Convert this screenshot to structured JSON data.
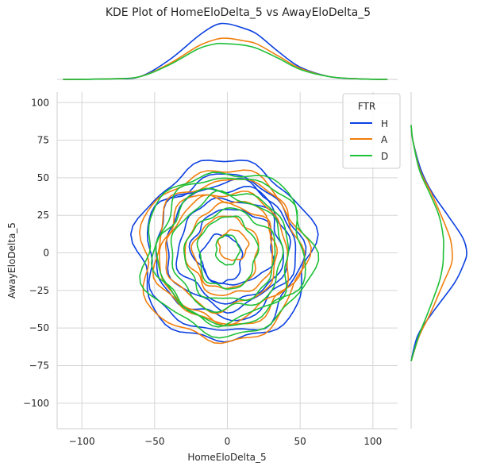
{
  "chart_data": {
    "type": "kde-joint",
    "title": "KDE Plot of HomeEloDelta_5 vs AwayEloDelta_5",
    "xlabel": "HomeEloDelta_5",
    "ylabel": "AwayEloDelta_5",
    "xlim": [
      -117,
      117
    ],
    "ylim": [
      -117,
      107
    ],
    "xticks": [
      -100,
      -50,
      0,
      50,
      100
    ],
    "xtick_labels": [
      "−100",
      "−50",
      "0",
      "50",
      "100"
    ],
    "yticks": [
      -100,
      -75,
      -50,
      -25,
      0,
      25,
      50,
      75,
      100
    ],
    "ytick_labels": [
      "−100",
      "−75",
      "−50",
      "−25",
      "0",
      "25",
      "50",
      "75",
      "100"
    ],
    "grid": true,
    "legend": {
      "title": "FTR",
      "placement": "top-right",
      "entries": [
        "H",
        "A",
        "D"
      ]
    },
    "series": [
      {
        "name": "H",
        "color": "#0b40e0",
        "contours": [
          {
            "rx": 60,
            "ry": 60,
            "cx": -2,
            "cy": 1
          },
          {
            "rx": 53,
            "ry": 52,
            "cx": -3,
            "cy": -1
          },
          {
            "rx": 48,
            "ry": 45,
            "cx": -2,
            "cy": 2
          },
          {
            "rx": 42,
            "ry": 40,
            "cx": 0,
            "cy": 4
          },
          {
            "rx": 36,
            "ry": 34,
            "cx": 2,
            "cy": 2
          },
          {
            "rx": 28,
            "ry": 25,
            "cx": 4,
            "cy": 4
          },
          {
            "rx": 14,
            "ry": 16,
            "cx": -4,
            "cy": -4
          }
        ],
        "marginal_x": [
          [
            -113,
            0
          ],
          [
            -80,
            0.01
          ],
          [
            -60,
            0.05
          ],
          [
            -40,
            0.35
          ],
          [
            -20,
            0.78
          ],
          [
            -8,
            0.98
          ],
          [
            0,
            1.0
          ],
          [
            10,
            0.93
          ],
          [
            20,
            0.82
          ],
          [
            35,
            0.5
          ],
          [
            50,
            0.22
          ],
          [
            70,
            0.05
          ],
          [
            90,
            0.01
          ],
          [
            110,
            0
          ]
        ],
        "marginal_y": [
          [
            -72,
            0
          ],
          [
            -55,
            0.12
          ],
          [
            -40,
            0.38
          ],
          [
            -20,
            0.78
          ],
          [
            -8,
            0.94
          ],
          [
            0,
            1.0
          ],
          [
            10,
            0.93
          ],
          [
            25,
            0.66
          ],
          [
            40,
            0.38
          ],
          [
            55,
            0.18
          ],
          [
            75,
            0.03
          ],
          [
            85,
            0
          ]
        ]
      },
      {
        "name": "A",
        "color": "#f07f0e",
        "contours": [
          {
            "rx": 56,
            "ry": 57,
            "cx": -4,
            "cy": -2
          },
          {
            "rx": 50,
            "ry": 48,
            "cx": 0,
            "cy": 1
          },
          {
            "rx": 44,
            "ry": 43,
            "cx": -2,
            "cy": -2
          },
          {
            "rx": 38,
            "ry": 37,
            "cx": -4,
            "cy": 0
          },
          {
            "rx": 30,
            "ry": 30,
            "cx": 2,
            "cy": 2
          },
          {
            "rx": 22,
            "ry": 24,
            "cx": -1,
            "cy": 0
          },
          {
            "rx": 10,
            "ry": 10,
            "cx": 4,
            "cy": 5
          }
        ],
        "marginal_x": [
          [
            -113,
            0
          ],
          [
            -80,
            0.01
          ],
          [
            -60,
            0.05
          ],
          [
            -40,
            0.28
          ],
          [
            -20,
            0.6
          ],
          [
            -8,
            0.72
          ],
          [
            0,
            0.74
          ],
          [
            10,
            0.7
          ],
          [
            20,
            0.64
          ],
          [
            35,
            0.42
          ],
          [
            50,
            0.2
          ],
          [
            70,
            0.05
          ],
          [
            90,
            0.01
          ],
          [
            110,
            0
          ]
        ],
        "marginal_y": [
          [
            -72,
            0
          ],
          [
            -55,
            0.15
          ],
          [
            -40,
            0.35
          ],
          [
            -20,
            0.58
          ],
          [
            -8,
            0.72
          ],
          [
            0,
            0.74
          ],
          [
            10,
            0.7
          ],
          [
            25,
            0.54
          ],
          [
            40,
            0.36
          ],
          [
            55,
            0.16
          ],
          [
            75,
            0.03
          ],
          [
            85,
            0
          ]
        ]
      },
      {
        "name": "D",
        "color": "#1ec038",
        "contours": [
          {
            "rx": 58,
            "ry": 54,
            "cx": 0,
            "cy": 0
          },
          {
            "rx": 51,
            "ry": 49,
            "cx": 2,
            "cy": 2
          },
          {
            "rx": 45,
            "ry": 44,
            "cx": -2,
            "cy": -2
          },
          {
            "rx": 38,
            "ry": 38,
            "cx": 0,
            "cy": 0
          },
          {
            "rx": 31,
            "ry": 30,
            "cx": 2,
            "cy": -2
          },
          {
            "rx": 20,
            "ry": 24,
            "cx": 0,
            "cy": 0
          },
          {
            "rx": 8,
            "ry": 10,
            "cx": 0,
            "cy": 2
          }
        ],
        "marginal_x": [
          [
            -113,
            0
          ],
          [
            -80,
            0.01
          ],
          [
            -60,
            0.05
          ],
          [
            -40,
            0.26
          ],
          [
            -20,
            0.55
          ],
          [
            -8,
            0.64
          ],
          [
            0,
            0.64
          ],
          [
            10,
            0.62
          ],
          [
            20,
            0.56
          ],
          [
            35,
            0.38
          ],
          [
            50,
            0.18
          ],
          [
            70,
            0.05
          ],
          [
            90,
            0.01
          ],
          [
            110,
            0
          ]
        ],
        "marginal_y": [
          [
            -72,
            0
          ],
          [
            -55,
            0.14
          ],
          [
            -40,
            0.3
          ],
          [
            -20,
            0.5
          ],
          [
            -8,
            0.57
          ],
          [
            0,
            0.58
          ],
          [
            10,
            0.58
          ],
          [
            25,
            0.5
          ],
          [
            40,
            0.33
          ],
          [
            55,
            0.15
          ],
          [
            75,
            0.03
          ],
          [
            85,
            0
          ]
        ]
      }
    ]
  }
}
